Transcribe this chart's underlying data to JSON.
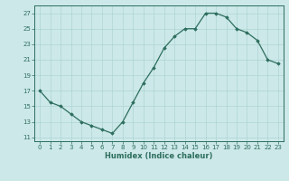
{
  "x": [
    0,
    1,
    2,
    3,
    4,
    5,
    6,
    7,
    8,
    9,
    10,
    11,
    12,
    13,
    14,
    15,
    16,
    17,
    18,
    19,
    20,
    21,
    22,
    23
  ],
  "y": [
    17,
    15.5,
    15,
    14,
    13,
    12.5,
    12,
    11.5,
    13,
    15.5,
    18,
    20,
    22.5,
    24,
    25,
    25,
    27,
    27,
    26.5,
    25,
    24.5,
    23.5,
    21,
    20.5
  ],
  "xlim": [
    -0.5,
    23.5
  ],
  "ylim": [
    10.5,
    28
  ],
  "yticks": [
    11,
    13,
    15,
    17,
    19,
    21,
    23,
    25,
    27
  ],
  "xticks": [
    0,
    1,
    2,
    3,
    4,
    5,
    6,
    7,
    8,
    9,
    10,
    11,
    12,
    13,
    14,
    15,
    16,
    17,
    18,
    19,
    20,
    21,
    22,
    23
  ],
  "xlabel": "Humidex (Indice chaleur)",
  "line_color": "#2d6e5e",
  "marker": "D",
  "marker_size": 1.8,
  "bg_color": "#cce8e8",
  "grid_color": "#afd4d4",
  "tick_fontsize": 5.0,
  "xlabel_fontsize": 6.0
}
